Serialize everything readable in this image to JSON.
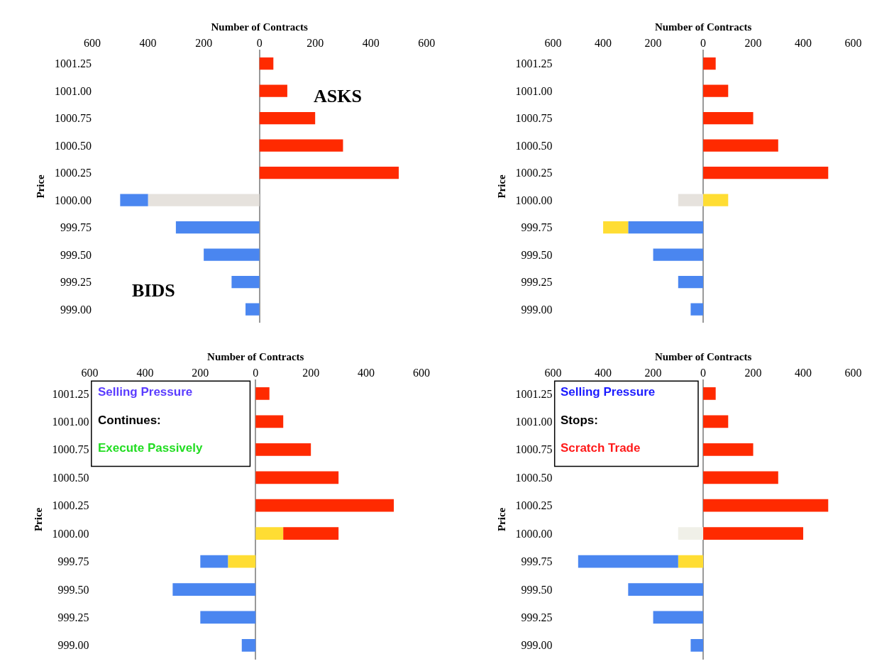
{
  "chart_data": [
    {
      "type": "bar",
      "orientation": "horizontal",
      "stacked": true,
      "xlabel": "Number of Contracts",
      "ylabel": "Price",
      "categories": [
        "1001.25",
        "1001.00",
        "1000.75",
        "1000.50",
        "1000.25",
        "1000.00",
        "999.75",
        "999.50",
        "999.25",
        "999.00"
      ],
      "series": [
        {
          "color": "#ff2a00",
          "values": [
            50,
            100,
            200,
            300,
            500,
            null,
            null,
            null,
            null,
            null
          ]
        },
        {
          "color": "#e6e2dd",
          "values": [
            null,
            null,
            null,
            null,
            null,
            -400,
            null,
            null,
            null,
            null
          ]
        },
        {
          "color": "#4a86f0",
          "values": [
            null,
            null,
            null,
            null,
            null,
            -100,
            -300,
            -200,
            -100,
            -50
          ]
        }
      ],
      "xlim": [
        -600,
        600
      ],
      "xticks": [
        {
          "value": -600,
          "label": "600"
        },
        {
          "value": -400,
          "label": "400"
        },
        {
          "value": -200,
          "label": "200"
        },
        0,
        200,
        400,
        600
      ],
      "annotations": [
        "ASKS",
        "BIDS"
      ]
    },
    {
      "type": "bar",
      "orientation": "horizontal",
      "stacked": true,
      "xlabel": "Number of Contracts",
      "ylabel": "Price",
      "categories": [
        "1001.25",
        "1001.00",
        "1000.75",
        "1000.50",
        "1000.25",
        "1000.00",
        "999.75",
        "999.50",
        "999.25",
        "999.00"
      ],
      "series": [
        {
          "color": "#ff2a00",
          "values": [
            50,
            100,
            200,
            300,
            500,
            null,
            null,
            null,
            null,
            null
          ]
        },
        {
          "color": "#e6e2dd",
          "values": [
            null,
            null,
            null,
            null,
            null,
            -100,
            null,
            null,
            null,
            null
          ]
        },
        {
          "color": "#4a86f0",
          "values": [
            null,
            null,
            null,
            null,
            null,
            null,
            -300,
            -200,
            -100,
            -50
          ]
        },
        {
          "color": "#ffdd33",
          "values": [
            null,
            null,
            null,
            null,
            null,
            100,
            -100,
            null,
            null,
            null
          ]
        }
      ],
      "xlim": [
        -600,
        600
      ],
      "xticks": [
        {
          "value": -600,
          "label": "600"
        },
        {
          "value": -400,
          "label": "400"
        },
        {
          "value": -200,
          "label": "200"
        },
        0,
        200,
        400,
        600
      ]
    },
    {
      "type": "bar",
      "orientation": "horizontal",
      "stacked": true,
      "xlabel": "Number of Contracts",
      "ylabel": "Price",
      "categories": [
        "1001.25",
        "1001.00",
        "1000.75",
        "1000.50",
        "1000.25",
        "1000.00",
        "999.75",
        "999.50",
        "999.25",
        "999.00"
      ],
      "series": [
        {
          "color": "#ffdd33",
          "values": [
            null,
            null,
            null,
            null,
            null,
            100,
            -100,
            null,
            null,
            null
          ]
        },
        {
          "color": "#ff2a00",
          "values": [
            50,
            100,
            200,
            300,
            500,
            200,
            null,
            null,
            null,
            null
          ]
        },
        {
          "color": "#4a86f0",
          "values": [
            null,
            null,
            null,
            null,
            null,
            null,
            -100,
            -300,
            -200,
            -50
          ]
        }
      ],
      "xlim": [
        -600,
        600
      ],
      "xticks": [
        {
          "value": -600,
          "label": "600"
        },
        {
          "value": -400,
          "label": "400"
        },
        {
          "value": -200,
          "label": "200"
        },
        0,
        200,
        400,
        600
      ],
      "annotations": [
        "Selling Pressure",
        "Continues:",
        "Execute Passively"
      ]
    },
    {
      "type": "bar",
      "orientation": "horizontal",
      "stacked": true,
      "xlabel": "Number of Contracts",
      "ylabel": "Price",
      "categories": [
        "1001.25",
        "1001.00",
        "1000.75",
        "1000.50",
        "1000.25",
        "1000.00",
        "999.75",
        "999.50",
        "999.25",
        "999.00"
      ],
      "series": [
        {
          "color": "#ff2a00",
          "values": [
            50,
            100,
            200,
            300,
            500,
            400,
            null,
            null,
            null,
            null
          ]
        },
        {
          "color": "#f0f0e8",
          "values": [
            null,
            null,
            null,
            null,
            null,
            -100,
            null,
            null,
            null,
            null
          ]
        },
        {
          "color": "#ffdd33",
          "values": [
            null,
            null,
            null,
            null,
            null,
            null,
            -100,
            null,
            null,
            null
          ]
        },
        {
          "color": "#4a86f0",
          "values": [
            null,
            null,
            null,
            null,
            null,
            null,
            -400,
            -300,
            -200,
            -50
          ]
        }
      ],
      "xlim": [
        -600,
        600
      ],
      "xticks": [
        {
          "value": -600,
          "label": "600"
        },
        {
          "value": -400,
          "label": "400"
        },
        {
          "value": -200,
          "label": "200"
        },
        0,
        200,
        400,
        600
      ],
      "annotations": [
        "Selling Pressure",
        "Stops:",
        "Scratch Trade"
      ]
    }
  ]
}
